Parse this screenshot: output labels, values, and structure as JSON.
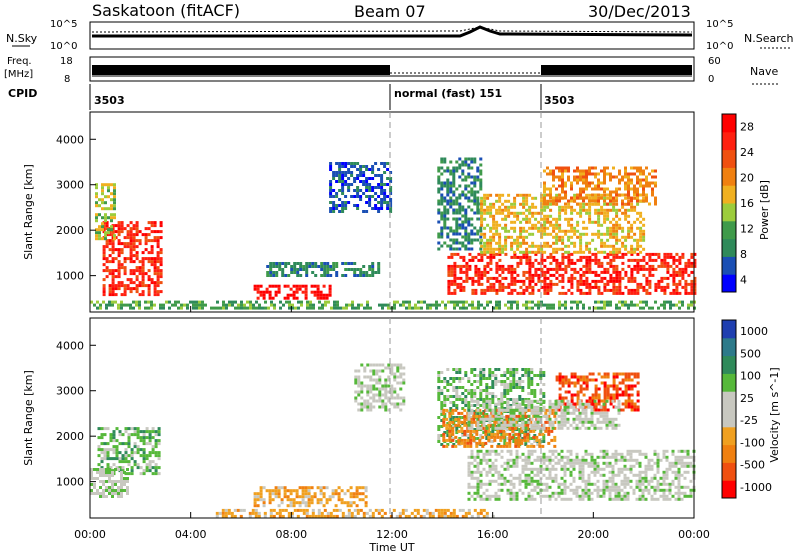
{
  "header": {
    "station": "Saskatoon (fitACF)",
    "beam": "Beam 07",
    "date": "30/Dec/2013"
  },
  "top_panel": {
    "nsky_label": "N.Sky",
    "nsky_ticks": [
      "10^5",
      "10^0"
    ],
    "nsearch_label": "N.Search",
    "nsearch_ticks": [
      "10^5",
      "10^0"
    ],
    "freq_label_1": "Freq.",
    "freq_label_2": "[MHz]",
    "freq_ticks": [
      "18",
      "8"
    ],
    "nave_label": "Nave",
    "nave_ticks": [
      "60",
      "0"
    ],
    "cpid_label": "CPID",
    "cpid_segments": [
      {
        "label": "3503",
        "start_hour": 0
      },
      {
        "label": "normal (fast) 151",
        "start_hour": 12
      },
      {
        "label": "3503",
        "start_hour": 18
      }
    ]
  },
  "colors": {
    "power_scale": [
      "#0000ff",
      "#1a4fb4",
      "#2f8a5a",
      "#3f9a4a",
      "#9ccc3c",
      "#f0b020",
      "#f08010",
      "#f05010",
      "#ff2010",
      "#ff0000"
    ],
    "velocity_scale": [
      "#1f3fb0",
      "#2d7a8a",
      "#2f8a5a",
      "#56b83a",
      "#c8c8c0",
      "#c8c8c0",
      "#f0a020",
      "#f08010",
      "#f05010",
      "#ff0000"
    ]
  },
  "chart_data": [
    {
      "type": "heatmap",
      "name": "Power",
      "ylabel": "Slant Range [km]",
      "yticks": [
        "1000",
        "2000",
        "3000",
        "4000"
      ],
      "ylim": [
        200,
        4600
      ],
      "xlim_hours": [
        0,
        24
      ],
      "colorbar_label": "Power [dB]",
      "colorbar_ticks": [
        "4",
        "8",
        "12",
        "16",
        "20",
        "24",
        "28"
      ],
      "blocks": [
        {
          "t": [
            0.5,
            2.8
          ],
          "r": [
            600,
            2200
          ],
          "level": 8
        },
        {
          "t": [
            0.2,
            1.0
          ],
          "r": [
            1800,
            3100
          ],
          "level": 4
        },
        {
          "t": [
            6.5,
            9.5
          ],
          "r": [
            500,
            800
          ],
          "level": 9
        },
        {
          "t": [
            7.0,
            11.5
          ],
          "r": [
            1000,
            1300
          ],
          "level": 2
        },
        {
          "t": [
            0.0,
            24.0
          ],
          "r": [
            300,
            450
          ],
          "level": 3
        },
        {
          "t": [
            14.2,
            24.0
          ],
          "r": [
            600,
            1500
          ],
          "level": 8
        },
        {
          "t": [
            13.8,
            15.5
          ],
          "r": [
            1600,
            3600
          ],
          "level": 2
        },
        {
          "t": [
            15.5,
            22.0
          ],
          "r": [
            1500,
            2800
          ],
          "level": 5
        },
        {
          "t": [
            18.0,
            22.5
          ],
          "r": [
            2600,
            3400
          ],
          "level": 6
        },
        {
          "t": [
            9.5,
            12.0
          ],
          "r": [
            2400,
            3500
          ],
          "level": 1
        }
      ]
    },
    {
      "type": "heatmap",
      "name": "Velocity",
      "ylabel": "Slant Range [km]",
      "yticks": [
        "1000",
        "2000",
        "3000",
        "4000"
      ],
      "ylim": [
        200,
        4600
      ],
      "xlim_hours": [
        0,
        24
      ],
      "xticks": [
        "00:00",
        "04:00",
        "08:00",
        "12:00",
        "16:00",
        "20:00",
        "00:00"
      ],
      "xlabel": "Time UT",
      "colorbar_label": "Velocity [m s^-1]",
      "colorbar_ticks": [
        "1000",
        "500",
        "100",
        "25",
        "-25",
        "-100",
        "-500",
        "-1000"
      ],
      "blocks": [
        {
          "t": [
            0.3,
            2.8
          ],
          "r": [
            1200,
            2200
          ],
          "level": 3
        },
        {
          "t": [
            0.0,
            1.5
          ],
          "r": [
            700,
            1300
          ],
          "level": 4
        },
        {
          "t": [
            6.5,
            11.0
          ],
          "r": [
            500,
            900
          ],
          "level": 6
        },
        {
          "t": [
            5.0,
            16.0
          ],
          "r": [
            250,
            400
          ],
          "level": 6
        },
        {
          "t": [
            15.0,
            24.0
          ],
          "r": [
            600,
            1700
          ],
          "level": 4
        },
        {
          "t": [
            13.8,
            18.0
          ],
          "r": [
            1800,
            3500
          ],
          "level": 3
        },
        {
          "t": [
            14.0,
            18.5
          ],
          "r": [
            1800,
            2600
          ],
          "level": 7
        },
        {
          "t": [
            18.5,
            21.8
          ],
          "r": [
            2600,
            3400
          ],
          "level": 8
        },
        {
          "t": [
            15.0,
            21.0
          ],
          "r": [
            2200,
            2800
          ],
          "level": 4
        },
        {
          "t": [
            10.5,
            12.5
          ],
          "r": [
            2600,
            3600
          ],
          "level": 4
        }
      ]
    }
  ]
}
